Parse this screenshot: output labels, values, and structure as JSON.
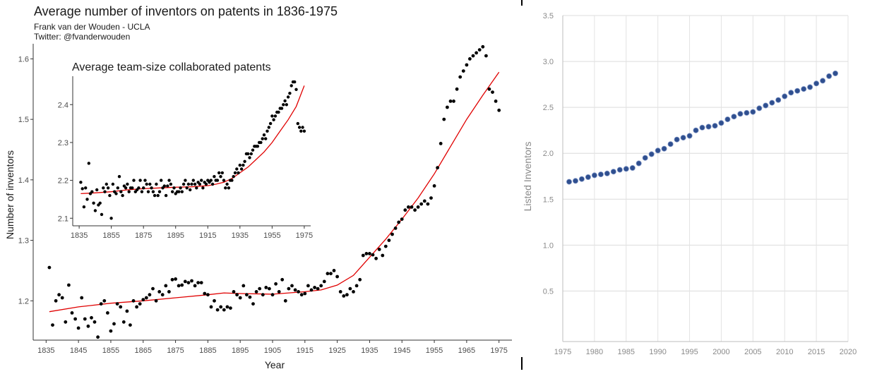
{
  "main_chart": {
    "title": "Average number of inventors on patents in 1836-1975",
    "subtitle_author": "Frank van der Wouden - UCLA",
    "subtitle_twitter": "Twitter: @fvanderwouden",
    "point_color": "#000000",
    "trend_color": "#e00000"
  },
  "chart_data": [
    {
      "type": "scatter",
      "title": "Average number of inventors on patents in 1836-1975",
      "xlabel": "Year",
      "ylabel": "Number of inventors",
      "xlim": [
        1831,
        1979
      ],
      "ylim": [
        1.135,
        1.625
      ],
      "xticks": [
        1835,
        1845,
        1855,
        1865,
        1875,
        1885,
        1895,
        1905,
        1915,
        1925,
        1935,
        1945,
        1955,
        1965,
        1975
      ],
      "yticks": [
        1.2,
        1.3,
        1.4,
        1.5,
        1.6
      ],
      "grid": false,
      "series": [
        {
          "x": [
            1836,
            1837,
            1838,
            1839,
            1840,
            1841,
            1842,
            1843,
            1844,
            1845,
            1846,
            1847,
            1848,
            1849,
            1850,
            1851,
            1852,
            1853,
            1854,
            1855,
            1856,
            1857,
            1858,
            1859,
            1860,
            1861,
            1862,
            1863,
            1864,
            1865,
            1866,
            1867,
            1868,
            1869,
            1870,
            1871,
            1872,
            1873,
            1874,
            1875,
            1876,
            1877,
            1878,
            1879,
            1880,
            1881,
            1882,
            1883,
            1884,
            1885,
            1886,
            1887,
            1888,
            1889,
            1890,
            1891,
            1892,
            1893,
            1894,
            1895,
            1896,
            1897,
            1898,
            1899,
            1900,
            1901,
            1902,
            1903,
            1904,
            1905,
            1906,
            1907,
            1908,
            1909,
            1910,
            1911,
            1912,
            1913,
            1914,
            1915,
            1916,
            1917,
            1918,
            1919,
            1920,
            1921,
            1922,
            1923,
            1924,
            1925,
            1926,
            1927,
            1928,
            1929,
            1930,
            1931,
            1932,
            1933,
            1934,
            1935,
            1936,
            1937,
            1938,
            1939,
            1940,
            1941,
            1942,
            1943,
            1944,
            1945,
            1946,
            1947,
            1948,
            1949,
            1950,
            1951,
            1952,
            1953,
            1954,
            1955,
            1956,
            1957,
            1958,
            1959,
            1960,
            1961,
            1962,
            1963,
            1964,
            1965,
            1966,
            1967,
            1968,
            1969,
            1970,
            1971,
            1972,
            1973,
            1974,
            1975
          ],
          "y": [
            1.255,
            1.16,
            1.2,
            1.21,
            1.205,
            1.165,
            1.226,
            1.18,
            1.17,
            1.155,
            1.205,
            1.17,
            1.158,
            1.172,
            1.165,
            1.14,
            1.195,
            1.2,
            1.18,
            1.15,
            1.162,
            1.195,
            1.19,
            1.165,
            1.183,
            1.16,
            1.2,
            1.19,
            1.195,
            1.202,
            1.205,
            1.21,
            1.22,
            1.2,
            1.215,
            1.21,
            1.225,
            1.215,
            1.235,
            1.236,
            1.225,
            1.226,
            1.232,
            1.23,
            1.233,
            1.225,
            1.23,
            1.23,
            1.212,
            1.21,
            1.19,
            1.2,
            1.185,
            1.19,
            1.185,
            1.19,
            1.188,
            1.215,
            1.21,
            1.205,
            1.225,
            1.21,
            1.206,
            1.195,
            1.215,
            1.22,
            1.21,
            1.222,
            1.22,
            1.21,
            1.228,
            1.215,
            1.235,
            1.2,
            1.22,
            1.225,
            1.218,
            1.215,
            1.21,
            1.212,
            1.225,
            1.218,
            1.222,
            1.22,
            1.225,
            1.232,
            1.245,
            1.245,
            1.25,
            1.24,
            1.215,
            1.208,
            1.21,
            1.22,
            1.215,
            1.225,
            1.235,
            1.275,
            1.278,
            1.278,
            1.276,
            1.27,
            1.285,
            1.275,
            1.29,
            1.3,
            1.31,
            1.32,
            1.33,
            1.335,
            1.35,
            1.355,
            1.355,
            1.35,
            1.355,
            1.36,
            1.365,
            1.36,
            1.37,
            1.39,
            1.42,
            1.46,
            1.5,
            1.52,
            1.53,
            1.53,
            1.55,
            1.57,
            1.58,
            1.59,
            1.6,
            1.605,
            1.61,
            1.615,
            1.62,
            1.605,
            1.55,
            1.545,
            1.53,
            1.515
          ]
        },
        {
          "name": "trend",
          "x": [
            1836,
            1845,
            1855,
            1865,
            1875,
            1885,
            1890,
            1895,
            1905,
            1915,
            1920,
            1925,
            1930,
            1935,
            1940,
            1945,
            1950,
            1955,
            1960,
            1965,
            1970,
            1975
          ],
          "y": [
            1.182,
            1.19,
            1.196,
            1.2,
            1.205,
            1.21,
            1.213,
            1.212,
            1.211,
            1.215,
            1.218,
            1.226,
            1.242,
            1.272,
            1.302,
            1.335,
            1.37,
            1.41,
            1.455,
            1.5,
            1.54,
            1.578
          ]
        }
      ]
    },
    {
      "type": "scatter",
      "title": "Average team-size collaborated patents",
      "xlim": [
        1831,
        1979
      ],
      "ylim": [
        2.08,
        2.475
      ],
      "xticks": [
        1835,
        1855,
        1875,
        1895,
        1915,
        1935,
        1955,
        1975
      ],
      "yticks": [
        2.1,
        2.2,
        2.3,
        2.4
      ],
      "grid": false,
      "series": [
        {
          "x": [
            1836,
            1837,
            1838,
            1839,
            1840,
            1841,
            1842,
            1843,
            1844,
            1845,
            1846,
            1847,
            1848,
            1849,
            1850,
            1851,
            1852,
            1853,
            1854,
            1855,
            1856,
            1857,
            1858,
            1859,
            1860,
            1861,
            1862,
            1863,
            1864,
            1865,
            1866,
            1867,
            1868,
            1869,
            1870,
            1871,
            1872,
            1873,
            1874,
            1875,
            1876,
            1877,
            1878,
            1879,
            1880,
            1881,
            1882,
            1883,
            1884,
            1885,
            1886,
            1887,
            1888,
            1889,
            1890,
            1891,
            1892,
            1893,
            1894,
            1895,
            1896,
            1897,
            1898,
            1899,
            1900,
            1901,
            1902,
            1903,
            1904,
            1905,
            1906,
            1907,
            1908,
            1909,
            1910,
            1911,
            1912,
            1913,
            1914,
            1915,
            1916,
            1917,
            1918,
            1919,
            1920,
            1921,
            1922,
            1923,
            1924,
            1925,
            1926,
            1927,
            1928,
            1929,
            1930,
            1931,
            1932,
            1933,
            1934,
            1935,
            1936,
            1937,
            1938,
            1939,
            1940,
            1941,
            1942,
            1943,
            1944,
            1945,
            1946,
            1947,
            1948,
            1949,
            1950,
            1951,
            1952,
            1953,
            1954,
            1955,
            1956,
            1957,
            1958,
            1959,
            1960,
            1961,
            1962,
            1963,
            1964,
            1965,
            1966,
            1967,
            1968,
            1969,
            1970,
            1971,
            1972,
            1973,
            1974,
            1975
          ],
          "y": [
            2.195,
            2.178,
            2.13,
            2.18,
            2.15,
            2.245,
            2.165,
            2.17,
            2.14,
            2.12,
            2.175,
            2.135,
            2.14,
            2.11,
            2.18,
            2.17,
            2.19,
            2.18,
            2.16,
            2.1,
            2.19,
            2.17,
            2.165,
            2.18,
            2.21,
            2.17,
            2.16,
            2.185,
            2.18,
            2.19,
            2.17,
            2.18,
            2.18,
            2.2,
            2.17,
            2.175,
            2.18,
            2.2,
            2.17,
            2.18,
            2.2,
            2.19,
            2.17,
            2.19,
            2.18,
            2.17,
            2.16,
            2.19,
            2.16,
            2.17,
            2.2,
            2.18,
            2.185,
            2.16,
            2.185,
            2.2,
            2.19,
            2.17,
            2.18,
            2.165,
            2.17,
            2.17,
            2.18,
            2.17,
            2.19,
            2.2,
            2.18,
            2.19,
            2.175,
            2.19,
            2.2,
            2.19,
            2.18,
            2.195,
            2.19,
            2.2,
            2.18,
            2.195,
            2.19,
            2.2,
            2.195,
            2.2,
            2.19,
            2.21,
            2.2,
            2.2,
            2.22,
            2.21,
            2.22,
            2.2,
            2.18,
            2.19,
            2.18,
            2.2,
            2.2,
            2.21,
            2.22,
            2.23,
            2.22,
            2.24,
            2.23,
            2.24,
            2.25,
            2.27,
            2.27,
            2.26,
            2.27,
            2.28,
            2.29,
            2.29,
            2.29,
            2.3,
            2.3,
            2.31,
            2.32,
            2.31,
            2.33,
            2.34,
            2.35,
            2.37,
            2.36,
            2.37,
            2.38,
            2.38,
            2.39,
            2.39,
            2.4,
            2.41,
            2.4,
            2.42,
            2.43,
            2.45,
            2.46,
            2.46,
            2.44,
            2.35,
            2.34,
            2.33,
            2.34,
            2.33
          ]
        },
        {
          "name": "trend",
          "x": [
            1836,
            1845,
            1855,
            1865,
            1875,
            1885,
            1895,
            1905,
            1915,
            1920,
            1925,
            1930,
            1935,
            1940,
            1945,
            1950,
            1955,
            1960,
            1965,
            1970,
            1975
          ],
          "y": [
            2.165,
            2.167,
            2.17,
            2.175,
            2.178,
            2.18,
            2.182,
            2.183,
            2.186,
            2.19,
            2.195,
            2.205,
            2.22,
            2.235,
            2.255,
            2.275,
            2.3,
            2.33,
            2.36,
            2.395,
            2.45
          ]
        }
      ]
    },
    {
      "type": "scatter",
      "ylabel": "Listed Inventors",
      "xlim": [
        1975,
        2020
      ],
      "ylim": [
        -0.05,
        3.5
      ],
      "xticks": [
        1975,
        1980,
        1985,
        1990,
        1995,
        2000,
        2005,
        2010,
        2015,
        2020
      ],
      "yticks": [
        0.5,
        1.0,
        1.5,
        2.0,
        2.5,
        3.0,
        3.5
      ],
      "ytick_labels": [
        "0.5",
        "1.0",
        "1.5",
        "2.0",
        "2.5",
        "3.0",
        "3.5"
      ],
      "grid": true,
      "point_color": "#2f4f8f",
      "series": [
        {
          "x": [
            1976,
            1977,
            1978,
            1979,
            1980,
            1981,
            1982,
            1983,
            1984,
            1985,
            1986,
            1987,
            1988,
            1989,
            1990,
            1991,
            1992,
            1993,
            1994,
            1995,
            1996,
            1997,
            1998,
            1999,
            2000,
            2001,
            2002,
            2003,
            2004,
            2005,
            2006,
            2007,
            2008,
            2009,
            2010,
            2011,
            2012,
            2013,
            2014,
            2015,
            2016,
            2017,
            2018
          ],
          "y": [
            1.69,
            1.7,
            1.72,
            1.74,
            1.76,
            1.77,
            1.78,
            1.8,
            1.82,
            1.83,
            1.84,
            1.89,
            1.95,
            1.99,
            2.03,
            2.05,
            2.1,
            2.15,
            2.17,
            2.19,
            2.25,
            2.28,
            2.29,
            2.3,
            2.33,
            2.37,
            2.4,
            2.43,
            2.44,
            2.45,
            2.49,
            2.52,
            2.55,
            2.58,
            2.62,
            2.66,
            2.68,
            2.7,
            2.72,
            2.76,
            2.79,
            2.84,
            2.87
          ]
        }
      ]
    }
  ]
}
